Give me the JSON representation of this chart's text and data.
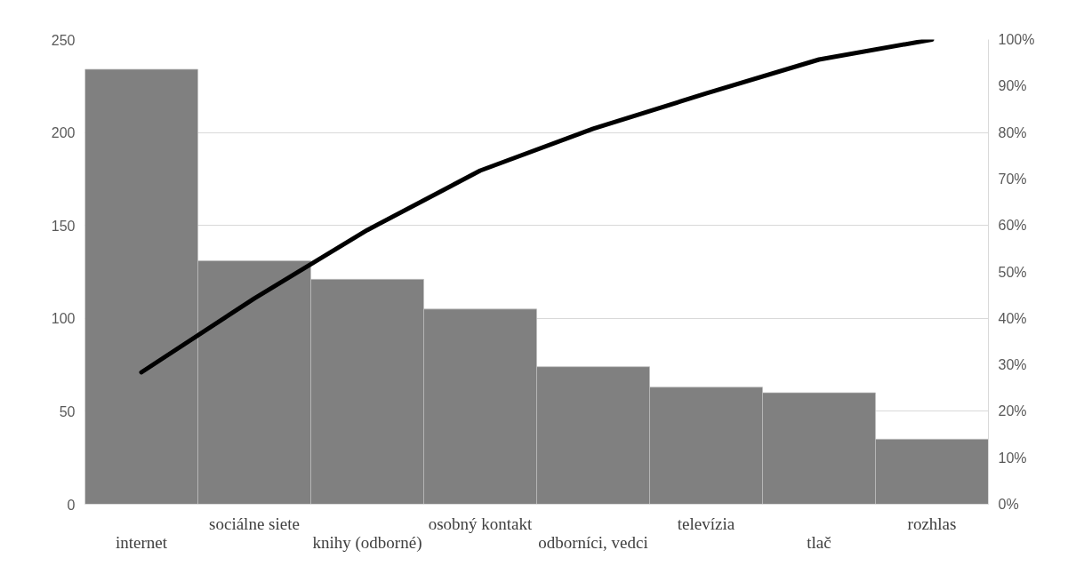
{
  "chart_data": {
    "type": "bar",
    "categories": [
      "internet",
      "sociálne siete",
      "knihy (odborné)",
      "osobný kontakt",
      "odborníci, vedci",
      "televízia",
      "tlač",
      "rozhlas"
    ],
    "series": [
      {
        "color": "#808080",
        "values": [
          234,
          131,
          121,
          105,
          74,
          63,
          60,
          35
        ]
      },
      {
        "type": "line",
        "axis": "y2",
        "color": "#000000",
        "values": [
          28.4,
          44.3,
          59.0,
          71.8,
          80.8,
          88.4,
          95.7,
          100
        ]
      }
    ],
    "ylim": [
      0,
      250
    ],
    "yticks": [
      0,
      50,
      100,
      150,
      200,
      250
    ],
    "y2lim": [
      0,
      100
    ],
    "y2ticks": [
      {
        "value": 0,
        "label": "0%"
      },
      {
        "value": 10,
        "label": "10%"
      },
      {
        "value": 20,
        "label": "20%"
      },
      {
        "value": 30,
        "label": "30%"
      },
      {
        "value": 40,
        "label": "40%"
      },
      {
        "value": 50,
        "label": "50%"
      },
      {
        "value": 60,
        "label": "60%"
      },
      {
        "value": 70,
        "label": "70%"
      },
      {
        "value": 80,
        "label": "80%"
      },
      {
        "value": 90,
        "label": "90%"
      },
      {
        "value": 100,
        "label": "100%"
      }
    ],
    "grid": "y"
  }
}
